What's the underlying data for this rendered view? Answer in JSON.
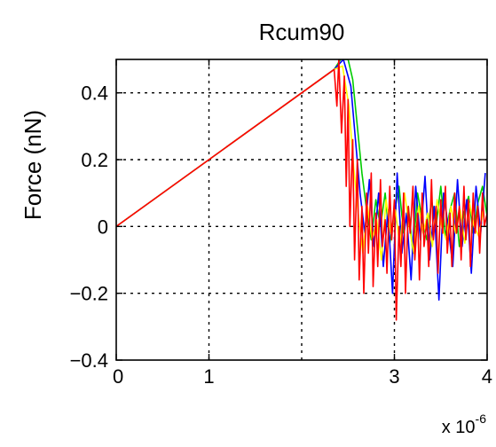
{
  "chart_data": {
    "type": "line",
    "title": "Rcum90",
    "xlabel": "",
    "ylabel": "Force (nN)",
    "x_exponent_base": "x 10",
    "x_exponent_power": "-6",
    "xlim": [
      0,
      4
    ],
    "ylim": [
      -0.4,
      0.5
    ],
    "xticks": [
      0,
      1,
      3,
      4
    ],
    "xtick_labels": [
      "0",
      "1",
      "3",
      "4"
    ],
    "xgrid": [
      1,
      2,
      3
    ],
    "yticks": [
      -0.4,
      -0.2,
      0,
      0.2,
      0.4
    ],
    "ytick_labels": [
      "−0.4",
      "−0.2",
      "0",
      "0.2",
      "0.4"
    ],
    "ygrid": [
      -0.2,
      0,
      0.2,
      0.4
    ],
    "grid": true,
    "series_colors": [
      "#00cc00",
      "#0000ff",
      "#ffff00",
      "#ff0000"
    ],
    "series": [
      {
        "color": "#00cc00",
        "x": [
          0,
          2.35,
          2.42,
          2.5,
          2.55,
          2.6,
          2.65,
          2.7,
          2.75,
          2.8,
          2.85,
          2.9,
          2.95,
          3.0,
          3.05,
          3.1,
          3.15,
          3.2,
          3.25,
          3.3,
          3.35,
          3.4,
          3.45,
          3.5,
          3.55,
          3.6,
          3.65,
          3.7,
          3.75,
          3.8,
          3.85,
          3.9,
          3.95,
          4.0
        ],
        "y": [
          0,
          0.47,
          0.5,
          0.5,
          0.44,
          0.3,
          0.16,
          0.05,
          -0.04,
          0.08,
          0.0,
          0.1,
          -0.05,
          0.04,
          0.12,
          -0.02,
          0.06,
          -0.08,
          0.1,
          0.02,
          -0.04,
          0.08,
          0.0,
          0.12,
          -0.03,
          0.05,
          0.1,
          -0.06,
          0.04,
          0.09,
          -0.02,
          0.07,
          0.12,
          0.03
        ]
      },
      {
        "color": "#0000ff",
        "x": [
          0,
          2.35,
          2.45,
          2.53,
          2.58,
          2.63,
          2.68,
          2.73,
          2.78,
          2.83,
          2.88,
          2.93,
          2.98,
          3.03,
          3.08,
          3.13,
          3.18,
          3.23,
          3.28,
          3.33,
          3.38,
          3.43,
          3.48,
          3.53,
          3.58,
          3.63,
          3.68,
          3.73,
          3.78,
          3.83,
          3.88,
          3.93,
          3.98
        ],
        "y": [
          0,
          0.47,
          0.5,
          0.42,
          0.26,
          0.1,
          -0.02,
          0.14,
          -0.06,
          0.1,
          -0.12,
          0.05,
          -0.2,
          0.16,
          -0.08,
          0.04,
          -0.16,
          0.12,
          -0.04,
          0.15,
          -0.1,
          0.06,
          -0.22,
          0.1,
          0.0,
          -0.12,
          0.14,
          -0.06,
          0.08,
          -0.14,
          0.12,
          -0.02,
          0.16
        ]
      },
      {
        "color": "#ffff00",
        "x": [
          0,
          2.35,
          2.44,
          2.51,
          2.56,
          2.61,
          2.66,
          2.71,
          2.76,
          2.81,
          2.86,
          2.91,
          2.96,
          3.01,
          3.06,
          3.11,
          3.16,
          3.21,
          3.26,
          3.31,
          3.36,
          3.41,
          3.46,
          3.51,
          3.56,
          3.61,
          3.66,
          3.71,
          3.76,
          3.81,
          3.86,
          3.91,
          3.96
        ],
        "y": [
          0,
          0.47,
          0.48,
          0.36,
          0.18,
          0.04,
          -0.08,
          0.06,
          -0.04,
          0.02,
          -0.1,
          0.08,
          -0.02,
          0.05,
          -0.06,
          0.1,
          0.0,
          -0.08,
          0.06,
          -0.02,
          0.04,
          -0.06,
          0.08,
          0.0,
          -0.04,
          0.06,
          -0.02,
          0.05,
          -0.05,
          0.07,
          0.0,
          -0.03,
          0.05
        ]
      },
      {
        "color": "#ff0000",
        "x": [
          0,
          2.35,
          2.38,
          2.4,
          2.43,
          2.46,
          2.48,
          2.5,
          2.52,
          2.55,
          2.57,
          2.6,
          2.62,
          2.65,
          2.67,
          2.7,
          2.72,
          2.75,
          2.77,
          2.8,
          2.82,
          2.85,
          2.87,
          2.9,
          2.92,
          2.95,
          2.97,
          3.0,
          3.02,
          3.05,
          3.07,
          3.1,
          3.12,
          3.15,
          3.17,
          3.2,
          3.22,
          3.25,
          3.27,
          3.3,
          3.32,
          3.35,
          3.37,
          3.4,
          3.42,
          3.45,
          3.47,
          3.5,
          3.52,
          3.55,
          3.57,
          3.6,
          3.62,
          3.65,
          3.67,
          3.7,
          3.72,
          3.75,
          3.77,
          3.8,
          3.82,
          3.85,
          3.87,
          3.9,
          3.92,
          3.95,
          3.97,
          4.0
        ],
        "y": [
          0,
          0.47,
          0.36,
          0.5,
          0.28,
          0.45,
          0.12,
          0.38,
          0.0,
          0.26,
          -0.1,
          0.2,
          -0.16,
          0.06,
          -0.2,
          0.1,
          -0.08,
          0.16,
          -0.18,
          0.04,
          -0.12,
          0.14,
          -0.06,
          0.02,
          -0.14,
          0.12,
          -0.04,
          0.08,
          -0.28,
          0.0,
          -0.12,
          0.1,
          -0.2,
          0.06,
          -0.02,
          0.12,
          -0.1,
          0.04,
          -0.16,
          0.1,
          -0.06,
          0.02,
          -0.12,
          0.14,
          -0.04,
          0.06,
          -0.14,
          0.08,
          -0.02,
          0.12,
          -0.08,
          0.04,
          -0.12,
          0.1,
          -0.02,
          0.06,
          -0.1,
          0.12,
          -0.04,
          0.08,
          -0.12,
          0.1,
          -0.02,
          0.06,
          -0.08,
          0.1,
          0.0,
          0.04
        ]
      }
    ]
  }
}
